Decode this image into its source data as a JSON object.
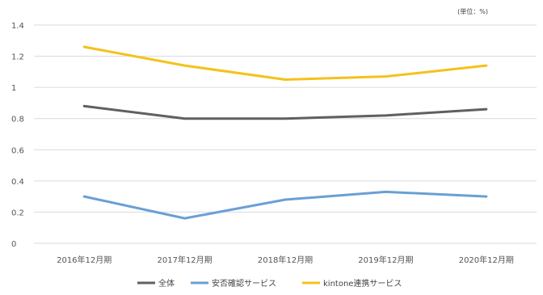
{
  "chart_data": {
    "type": "line",
    "unit_note": "(単位：%)",
    "categories": [
      "2016年12月期",
      "2017年12月期",
      "2018年12月期",
      "2019年12月期",
      "2020年12月期"
    ],
    "ylim": [
      0,
      1.4
    ],
    "yticks": [
      0,
      0.2,
      0.4,
      0.6,
      0.8,
      1,
      1.2,
      1.4
    ],
    "grid": true,
    "legend_position": "bottom",
    "series": [
      {
        "name": "全体",
        "color": "#606060",
        "values": [
          0.88,
          0.8,
          0.8,
          0.82,
          0.86
        ]
      },
      {
        "name": "安否確認サービス",
        "color": "#6a9fd4",
        "values": [
          0.3,
          0.16,
          0.28,
          0.33,
          0.3
        ]
      },
      {
        "name": "kintone連携サービス",
        "color": "#f4c21a",
        "values": [
          1.26,
          1.14,
          1.05,
          1.07,
          1.14
        ]
      }
    ]
  }
}
